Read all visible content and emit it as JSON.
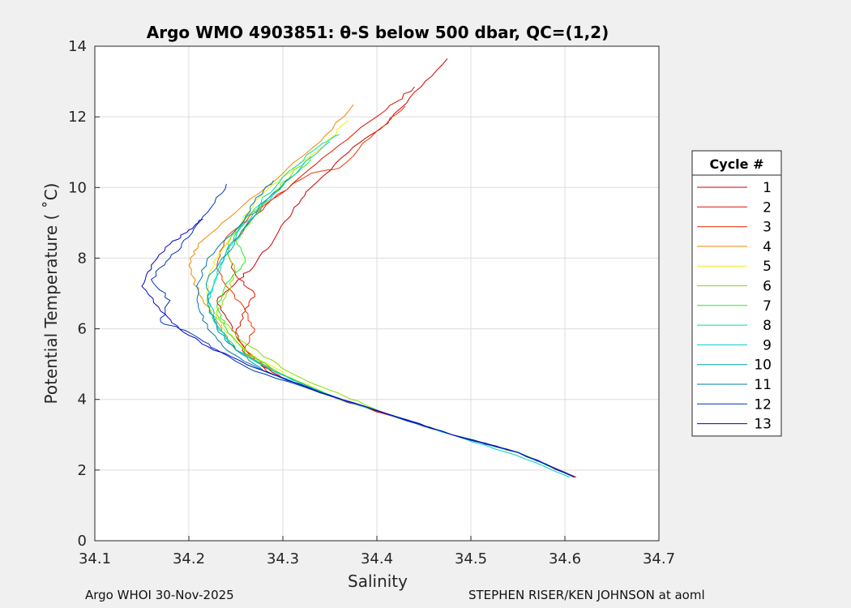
{
  "chart_data": {
    "type": "line",
    "title": "Argo WMO 4903851: θ-S below 500 dbar,  QC=(1,2)",
    "xlabel": "Salinity",
    "ylabel": "Potential Temperature ( ˚C)",
    "xlim": [
      34.1,
      34.7
    ],
    "ylim": [
      0,
      14
    ],
    "xticks": [
      "34.1",
      "34.2",
      "34.3",
      "34.4",
      "34.5",
      "34.6",
      "34.7"
    ],
    "yticks": [
      "0",
      "2",
      "4",
      "6",
      "8",
      "10",
      "12",
      "14"
    ],
    "grid": true,
    "legend": {
      "title": "Cycle #",
      "placement": "right"
    },
    "series": [
      {
        "name": "1",
        "color": "#cc0000",
        "points": [
          [
            34.612,
            1.8
          ],
          [
            34.55,
            2.5
          ],
          [
            34.48,
            3.0
          ],
          [
            34.42,
            3.5
          ],
          [
            34.36,
            4.0
          ],
          [
            34.3,
            4.6
          ],
          [
            34.27,
            5.1
          ],
          [
            34.25,
            5.8
          ],
          [
            34.24,
            6.3
          ],
          [
            34.23,
            6.8
          ],
          [
            34.25,
            7.3
          ],
          [
            34.27,
            7.8
          ],
          [
            34.29,
            8.5
          ],
          [
            34.31,
            9.3
          ],
          [
            34.33,
            10.0
          ],
          [
            34.37,
            11.0
          ],
          [
            34.41,
            11.8
          ],
          [
            34.44,
            12.7
          ],
          [
            34.475,
            13.65
          ]
        ]
      },
      {
        "name": "2",
        "color": "#dd1100",
        "points": [
          [
            34.611,
            1.8
          ],
          [
            34.55,
            2.5
          ],
          [
            34.48,
            3.0
          ],
          [
            34.42,
            3.5
          ],
          [
            34.36,
            4.0
          ],
          [
            34.29,
            4.7
          ],
          [
            34.26,
            5.3
          ],
          [
            34.25,
            5.9
          ],
          [
            34.26,
            6.5
          ],
          [
            34.27,
            7.0
          ],
          [
            34.25,
            7.5
          ],
          [
            34.24,
            8.2
          ],
          [
            34.27,
            9.2
          ],
          [
            34.31,
            10.1
          ],
          [
            34.36,
            11.2
          ],
          [
            34.41,
            12.2
          ],
          [
            34.44,
            12.85
          ]
        ]
      },
      {
        "name": "3",
        "color": "#ee3300",
        "points": [
          [
            34.61,
            1.8
          ],
          [
            34.55,
            2.5
          ],
          [
            34.48,
            3.0
          ],
          [
            34.42,
            3.5
          ],
          [
            34.35,
            4.1
          ],
          [
            34.29,
            4.8
          ],
          [
            34.26,
            5.4
          ],
          [
            34.27,
            6.0
          ],
          [
            34.26,
            6.5
          ],
          [
            34.24,
            7.2
          ],
          [
            34.23,
            7.8
          ],
          [
            34.24,
            8.6
          ],
          [
            34.28,
            9.5
          ],
          [
            34.33,
            10.4
          ],
          [
            34.36,
            10.55
          ],
          [
            34.4,
            11.6
          ],
          [
            34.43,
            12.3
          ]
        ]
      },
      {
        "name": "4",
        "color": "#ee8800",
        "points": [
          [
            34.61,
            1.8
          ],
          [
            34.55,
            2.5
          ],
          [
            34.48,
            3.0
          ],
          [
            34.41,
            3.6
          ],
          [
            34.35,
            4.1
          ],
          [
            34.3,
            4.7
          ],
          [
            34.25,
            5.4
          ],
          [
            34.23,
            6.2
          ],
          [
            34.21,
            7.0
          ],
          [
            34.2,
            7.8
          ],
          [
            34.21,
            8.4
          ],
          [
            34.25,
            9.3
          ],
          [
            34.3,
            10.4
          ],
          [
            34.34,
            11.3
          ],
          [
            34.375,
            12.35
          ]
        ]
      },
      {
        "name": "5",
        "color": "#eeee00",
        "points": [
          [
            34.61,
            1.8
          ],
          [
            34.55,
            2.5
          ],
          [
            34.48,
            3.0
          ],
          [
            34.41,
            3.6
          ],
          [
            34.36,
            4.0
          ],
          [
            34.31,
            4.6
          ],
          [
            34.27,
            5.2
          ],
          [
            34.24,
            5.9
          ],
          [
            34.22,
            6.7
          ],
          [
            34.22,
            7.4
          ],
          [
            34.23,
            8.0
          ],
          [
            34.25,
            8.8
          ],
          [
            34.27,
            9.6
          ],
          [
            34.3,
            10.3
          ],
          [
            34.34,
            11.1
          ],
          [
            34.37,
            11.9
          ]
        ]
      },
      {
        "name": "6",
        "color": "#88dd00",
        "points": [
          [
            34.61,
            1.8
          ],
          [
            34.55,
            2.5
          ],
          [
            34.48,
            3.0
          ],
          [
            34.41,
            3.6
          ],
          [
            34.365,
            4.1
          ],
          [
            34.32,
            4.6
          ],
          [
            34.28,
            5.2
          ],
          [
            34.25,
            5.8
          ],
          [
            34.23,
            6.4
          ],
          [
            34.24,
            7.0
          ],
          [
            34.25,
            7.6
          ],
          [
            34.24,
            8.2
          ],
          [
            34.25,
            8.8
          ],
          [
            34.28,
            9.6
          ],
          [
            34.31,
            10.4
          ],
          [
            34.33,
            10.9
          ]
        ]
      },
      {
        "name": "7",
        "color": "#22ee22",
        "points": [
          [
            34.61,
            1.8
          ],
          [
            34.55,
            2.5
          ],
          [
            34.48,
            3.0
          ],
          [
            34.41,
            3.6
          ],
          [
            34.36,
            4.0
          ],
          [
            34.3,
            4.7
          ],
          [
            34.26,
            5.3
          ],
          [
            34.24,
            6.0
          ],
          [
            34.23,
            6.6
          ],
          [
            34.24,
            7.3
          ],
          [
            34.26,
            7.9
          ],
          [
            34.25,
            8.5
          ],
          [
            34.27,
            9.2
          ],
          [
            34.3,
            10.1
          ],
          [
            34.33,
            10.8
          ]
        ]
      },
      {
        "name": "8",
        "color": "#00ddaa",
        "points": [
          [
            34.61,
            1.8
          ],
          [
            34.55,
            2.5
          ],
          [
            34.48,
            3.0
          ],
          [
            34.41,
            3.6
          ],
          [
            34.35,
            4.1
          ],
          [
            34.29,
            4.8
          ],
          [
            34.25,
            5.4
          ],
          [
            34.23,
            6.1
          ],
          [
            34.22,
            6.8
          ],
          [
            34.23,
            7.5
          ],
          [
            34.24,
            8.1
          ],
          [
            34.25,
            8.7
          ],
          [
            34.27,
            9.4
          ],
          [
            34.3,
            10.3
          ],
          [
            34.34,
            11.2
          ],
          [
            34.36,
            11.5
          ]
        ]
      },
      {
        "name": "9",
        "color": "#00cccc",
        "points": [
          [
            34.605,
            1.8
          ],
          [
            34.55,
            2.4
          ],
          [
            34.48,
            3.0
          ],
          [
            34.41,
            3.6
          ],
          [
            34.35,
            4.1
          ],
          [
            34.29,
            4.8
          ],
          [
            34.25,
            5.4
          ],
          [
            34.23,
            6.1
          ],
          [
            34.22,
            6.8
          ],
          [
            34.23,
            7.5
          ],
          [
            34.24,
            8.2
          ],
          [
            34.26,
            9.0
          ],
          [
            34.29,
            9.8
          ],
          [
            34.32,
            10.6
          ],
          [
            34.35,
            11.3
          ]
        ]
      },
      {
        "name": "10",
        "color": "#009db0",
        "points": [
          [
            34.61,
            1.8
          ],
          [
            34.55,
            2.5
          ],
          [
            34.48,
            3.0
          ],
          [
            34.41,
            3.6
          ],
          [
            34.35,
            4.1
          ],
          [
            34.28,
            4.8
          ],
          [
            34.25,
            5.4
          ],
          [
            34.23,
            6.0
          ],
          [
            34.22,
            6.7
          ],
          [
            34.22,
            7.4
          ],
          [
            34.24,
            8.1
          ],
          [
            34.26,
            8.9
          ],
          [
            34.28,
            9.6
          ],
          [
            34.31,
            10.3
          ]
        ]
      },
      {
        "name": "11",
        "color": "#0077aa",
        "points": [
          [
            34.61,
            1.8
          ],
          [
            34.55,
            2.5
          ],
          [
            34.48,
            3.0
          ],
          [
            34.41,
            3.6
          ],
          [
            34.35,
            4.1
          ],
          [
            34.28,
            4.8
          ],
          [
            34.24,
            5.4
          ],
          [
            34.22,
            6.0
          ],
          [
            34.21,
            6.7
          ],
          [
            34.21,
            7.3
          ],
          [
            34.22,
            8.0
          ],
          [
            34.25,
            8.8
          ],
          [
            34.27,
            9.6
          ],
          [
            34.29,
            10.2
          ]
        ]
      },
      {
        "name": "12",
        "color": "#0033bb",
        "points": [
          [
            34.61,
            1.8
          ],
          [
            34.55,
            2.5
          ],
          [
            34.48,
            3.0
          ],
          [
            34.41,
            3.6
          ],
          [
            34.34,
            4.2
          ],
          [
            34.27,
            4.8
          ],
          [
            34.23,
            5.4
          ],
          [
            34.2,
            5.9
          ],
          [
            34.17,
            6.2
          ],
          [
            34.18,
            6.8
          ],
          [
            34.16,
            7.4
          ],
          [
            34.18,
            8.0
          ],
          [
            34.2,
            8.6
          ],
          [
            34.22,
            9.3
          ],
          [
            34.24,
            10.1
          ]
        ]
      },
      {
        "name": "13",
        "color": "#0000cc",
        "points": [
          [
            34.61,
            1.8
          ],
          [
            34.55,
            2.5
          ],
          [
            34.48,
            3.0
          ],
          [
            34.41,
            3.6
          ],
          [
            34.34,
            4.2
          ],
          [
            34.27,
            4.9
          ],
          [
            34.22,
            5.5
          ],
          [
            34.19,
            6.0
          ],
          [
            34.17,
            6.5
          ],
          [
            34.15,
            7.2
          ],
          [
            34.16,
            7.8
          ],
          [
            34.18,
            8.4
          ],
          [
            34.2,
            8.8
          ],
          [
            34.215,
            9.1
          ]
        ]
      }
    ]
  },
  "footer": {
    "left": "Argo WHOI 30-Nov-2025",
    "right": "STEPHEN RISER/KEN JOHNSON at aoml"
  }
}
